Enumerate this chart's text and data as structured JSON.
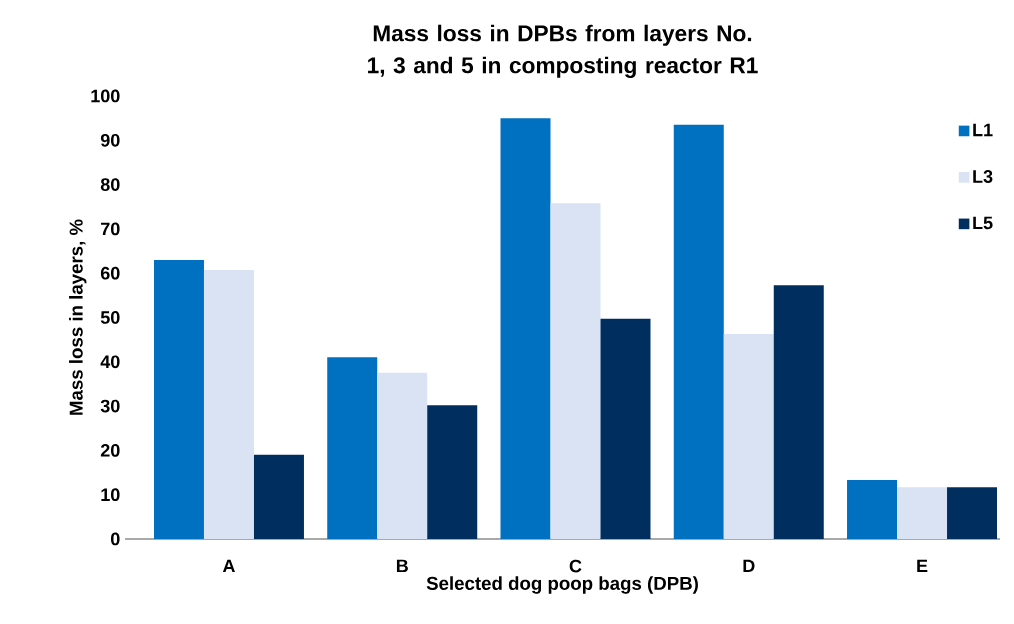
{
  "chart_data": {
    "type": "bar",
    "title": "Mass loss in DPBs from layers No. 1, 3 and 5 in composting reactor R1",
    "xlabel": "Selected dog poop bags  (DPB)",
    "ylabel": "Mass loss in layers, %",
    "categories": [
      "A",
      "B",
      "C",
      "D",
      "E"
    ],
    "series": [
      {
        "name": "L1",
        "color": "#0070c0",
        "values": [
          63,
          41,
          95,
          93.5,
          13.3
        ]
      },
      {
        "name": "L3",
        "color": "#dae3f3",
        "values": [
          60.7,
          37.5,
          75.8,
          46.3,
          11.7
        ]
      },
      {
        "name": "L5",
        "color": "#002f5f",
        "values": [
          19,
          30.2,
          49.7,
          57.3,
          11.7
        ]
      }
    ],
    "ylim": [
      0,
      100
    ],
    "yticks": [
      0,
      10,
      20,
      30,
      40,
      50,
      60,
      70,
      80,
      90,
      100
    ],
    "legend": "top right"
  }
}
